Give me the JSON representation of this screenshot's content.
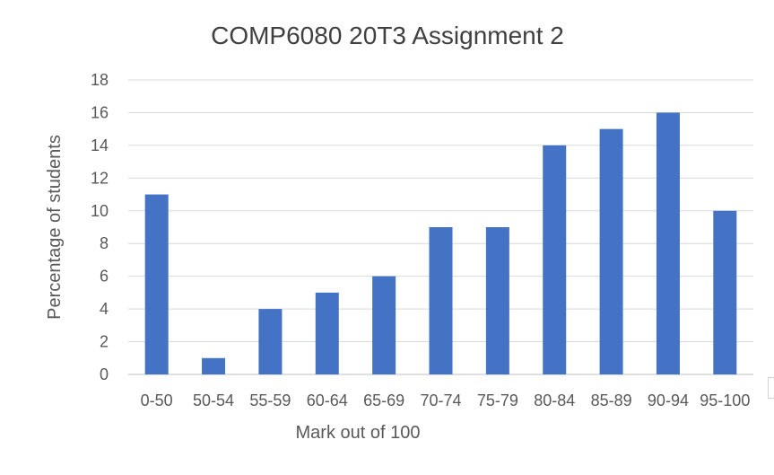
{
  "chart_data": {
    "type": "bar",
    "title": "COMP6080 20T3 Assignment 2",
    "xlabel": "Mark out of 100",
    "ylabel": "Percentage of students",
    "categories": [
      "0-50",
      "50-54",
      "55-59",
      "60-64",
      "65-69",
      "70-74",
      "75-79",
      "80-84",
      "85-89",
      "90-94",
      "95-100"
    ],
    "series": [
      {
        "values": [
          11,
          1,
          4,
          5,
          6,
          9,
          9,
          14,
          15,
          16,
          10
        ]
      }
    ],
    "yticks": [
      "0",
      "2",
      "4",
      "6",
      "8",
      "10",
      "12",
      "14",
      "16",
      "18"
    ],
    "ylim": [
      0,
      18
    ],
    "grid": true,
    "legend": "none",
    "colors": {
      "bar": "#4472C4",
      "grid": "#D9D9D9",
      "text": "#595959",
      "title": "#404040"
    }
  }
}
